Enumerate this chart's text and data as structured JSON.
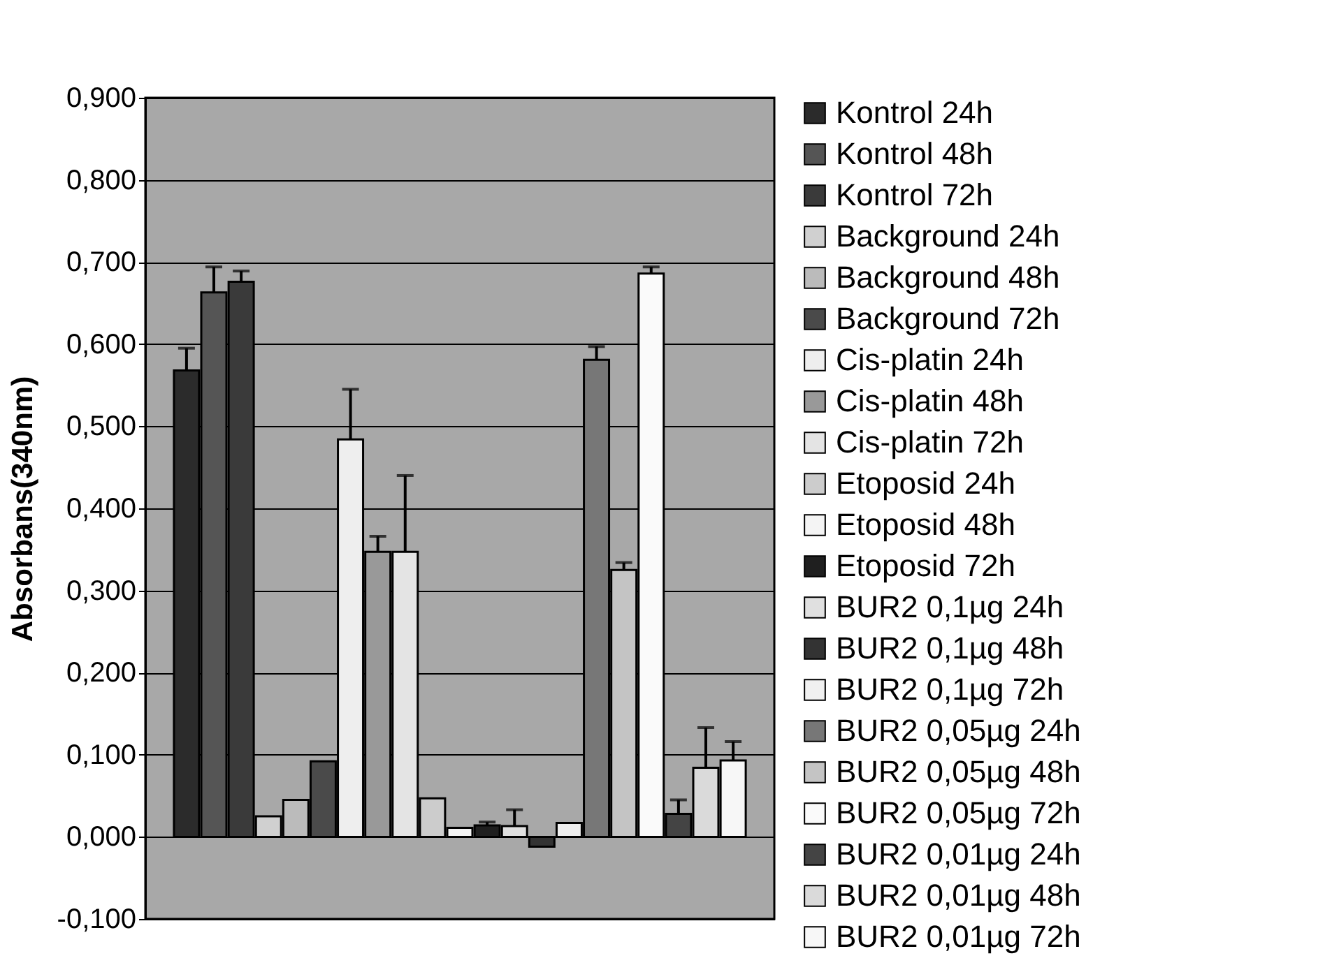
{
  "chart_data": {
    "type": "bar",
    "ylabel": "Absorbans(340nm)",
    "categories": [
      null
    ],
    "ylim": [
      -0.1,
      0.9
    ],
    "yticks": [
      {
        "value": -0.1,
        "label": "-0,100"
      },
      {
        "value": 0,
        "label": "0,000"
      },
      {
        "value": 0.1,
        "label": "0,100"
      },
      {
        "value": 0.2,
        "label": "0,200"
      },
      {
        "value": 0.3,
        "label": "0,300"
      },
      {
        "value": 0.4,
        "label": "0,400"
      },
      {
        "value": 0.5,
        "label": "0,500"
      },
      {
        "value": 0.6,
        "label": "0,600"
      },
      {
        "value": 0.7,
        "label": "0,700"
      },
      {
        "value": 0.8,
        "label": "0,800"
      },
      {
        "value": 0.9,
        "label": "0,900"
      }
    ],
    "grid": "y",
    "legend": "right",
    "series": [
      {
        "name": "Kontrol 24h",
        "color": "#2b2b2b",
        "values": [
          0.568
        ],
        "errors": [
          [
            0.568,
            0.595
          ]
        ]
      },
      {
        "name": "Kontrol 48h",
        "color": "#555555",
        "values": [
          0.663
        ],
        "errors": [
          [
            0.663,
            0.694
          ]
        ]
      },
      {
        "name": "Kontrol 72h",
        "color": "#3a3a3a",
        "values": [
          0.676
        ],
        "errors": [
          [
            0.676,
            0.689
          ]
        ]
      },
      {
        "name": "Background 24h",
        "color": "#d0d0d0",
        "values": [
          0.025
        ],
        "errors": [
          null
        ]
      },
      {
        "name": "Background 48h",
        "color": "#bbbbbb",
        "values": [
          0.045
        ],
        "errors": [
          null
        ]
      },
      {
        "name": "Background 72h",
        "color": "#4a4a4a",
        "values": [
          0.092
        ],
        "errors": [
          null
        ]
      },
      {
        "name": "Cis-platin 24h",
        "color": "#eeeeee",
        "values": [
          0.484
        ],
        "errors": [
          [
            0.484,
            0.545
          ]
        ]
      },
      {
        "name": "Cis-platin 48h",
        "color": "#999999",
        "values": [
          0.347
        ],
        "errors": [
          [
            0.347,
            0.366
          ]
        ]
      },
      {
        "name": "Cis-platin 72h",
        "color": "#e4e4e4",
        "values": [
          0.347
        ],
        "errors": [
          [
            0.347,
            0.44
          ]
        ]
      },
      {
        "name": "Etoposid 24h",
        "color": "#cccccc",
        "values": [
          0.047
        ],
        "errors": [
          null
        ]
      },
      {
        "name": "Etoposid 48h",
        "color": "#f4f4f4",
        "values": [
          0.011
        ],
        "errors": [
          null
        ]
      },
      {
        "name": "Etoposid 72h",
        "color": "#1f1f1f",
        "values": [
          0.014
        ],
        "errors": [
          [
            0.014,
            0.018
          ]
        ]
      },
      {
        "name": "BUR2 0,1µg 24h",
        "color": "#e0e0e0",
        "values": [
          0.013
        ],
        "errors": [
          [
            0.013,
            0.033
          ]
        ]
      },
      {
        "name": "BUR2 0,1µg 48h",
        "color": "#333333",
        "values": [
          -0.012
        ],
        "errors": [
          null
        ]
      },
      {
        "name": "BUR2 0,1µg 72h",
        "color": "#f0f0f0",
        "values": [
          0.017
        ],
        "errors": [
          null
        ]
      },
      {
        "name": "BUR2 0,05µg 24h",
        "color": "#777777",
        "values": [
          0.581
        ],
        "errors": [
          [
            0.581,
            0.597
          ]
        ]
      },
      {
        "name": "BUR2 0,05µg 48h",
        "color": "#c4c4c4",
        "values": [
          0.325
        ],
        "errors": [
          [
            0.325,
            0.334
          ]
        ]
      },
      {
        "name": "BUR2 0,05µg 72h",
        "color": "#fafafa",
        "values": [
          0.686
        ],
        "errors": [
          [
            0.686,
            0.694
          ]
        ]
      },
      {
        "name": "BUR2 0,01µg 24h",
        "color": "#444444",
        "values": [
          0.028
        ],
        "errors": [
          [
            0.028,
            0.045
          ]
        ]
      },
      {
        "name": "BUR2 0,01µg 48h",
        "color": "#dadada",
        "values": [
          0.084
        ],
        "errors": [
          [
            0.084,
            0.133
          ]
        ]
      },
      {
        "name": "BUR2 0,01µg 72h",
        "color": "#f7f7f7",
        "values": [
          0.093
        ],
        "errors": [
          [
            0.093,
            0.116
          ]
        ]
      }
    ]
  }
}
